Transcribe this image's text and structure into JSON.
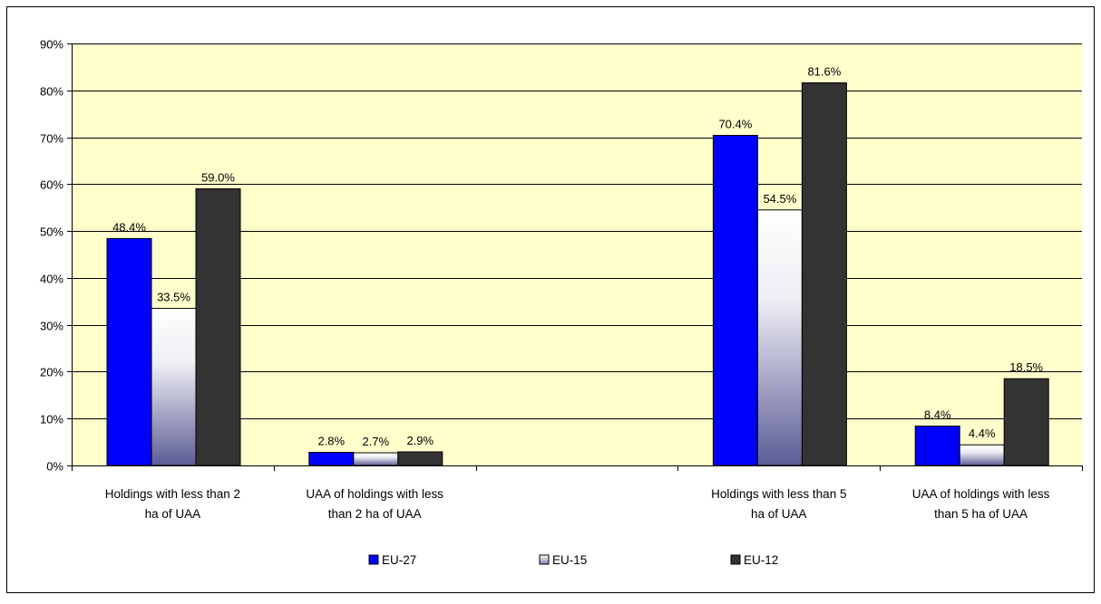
{
  "chart_data": {
    "type": "bar",
    "title": "",
    "xlabel": "",
    "ylabel": "",
    "ylim": [
      0,
      90
    ],
    "y_ticks": [
      "0%",
      "10%",
      "20%",
      "30%",
      "40%",
      "50%",
      "60%",
      "70%",
      "80%",
      "90%"
    ],
    "y_unit": "%",
    "grid": true,
    "plot_background": "#FFFFCC",
    "legend_placement": "bottom",
    "categories": [
      [
        "Holdings with less than 2",
        "ha of UAA"
      ],
      [
        "UAA of holdings with less",
        "than 2 ha of UAA"
      ],
      [
        "",
        ""
      ],
      [
        "Holdings with less than 5",
        "ha of UAA"
      ],
      [
        "UAA of holdings with less",
        "than 5 ha of UAA"
      ]
    ],
    "series": [
      {
        "name": "EU-27",
        "color": "#0000FF",
        "values": [
          48.4,
          2.8,
          null,
          70.4,
          8.4
        ]
      },
      {
        "name": "EU-15",
        "color": "#FFFFFF",
        "values": [
          33.5,
          2.7,
          null,
          54.5,
          4.4
        ]
      },
      {
        "name": "EU-12",
        "color": "#333333",
        "values": [
          59.0,
          2.9,
          null,
          81.6,
          18.5
        ]
      }
    ],
    "data_labels": [
      [
        "48.4%",
        "2.8%",
        "",
        "70.4%",
        "8.4%"
      ],
      [
        "33.5%",
        "2.7%",
        "",
        "54.5%",
        "4.4%"
      ],
      [
        "59.0%",
        "2.9%",
        "",
        "81.6%",
        "18.5%"
      ]
    ]
  }
}
